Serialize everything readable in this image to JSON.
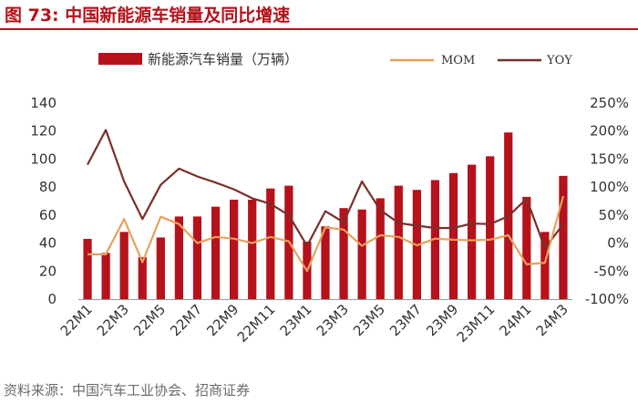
{
  "header": {
    "title": "图 73:  中国新能源车销量及同比增速"
  },
  "footer": {
    "source": "资料来源：中国汽车工业协会、招商证券"
  },
  "colors": {
    "bar": "#b5121b",
    "mom": "#e6a15c",
    "yoy": "#7a2e2a",
    "title": "#b5121b"
  },
  "chart_data": {
    "type": "bar",
    "title": "中国新能源车销量及同比增速",
    "categories": [
      "22M1",
      "22M2",
      "22M3",
      "22M4",
      "22M5",
      "22M6",
      "22M7",
      "22M8",
      "22M9",
      "22M10",
      "22M11",
      "22M12",
      "23M1",
      "23M2",
      "23M3",
      "23M4",
      "23M5",
      "23M6",
      "23M7",
      "23M8",
      "23M9",
      "23M10",
      "23M11",
      "23M12",
      "24M1",
      "24M2",
      "24M3"
    ],
    "tick_labels": [
      "22M1",
      "22M3",
      "22M5",
      "22M7",
      "22M9",
      "22M11",
      "23M1",
      "23M3",
      "23M5",
      "23M7",
      "23M9",
      "23M11",
      "24M1",
      "24M3"
    ],
    "series": [
      {
        "name": "新能源汽车销量（万辆）",
        "type": "bar",
        "axis": "left",
        "values": [
          43,
          33,
          48,
          30,
          44,
          59,
          59,
          66,
          71,
          71,
          79,
          81,
          41,
          52,
          65,
          64,
          72,
          81,
          78,
          85,
          90,
          96,
          102,
          119,
          73,
          48,
          88
        ]
      },
      {
        "name": "MOM",
        "type": "line",
        "axis": "right",
        "values": [
          -20,
          -20,
          43,
          -34,
          47,
          34,
          0,
          11,
          8,
          0,
          11,
          3,
          -50,
          28,
          24,
          -5,
          14,
          11,
          -4,
          8,
          6,
          5,
          6,
          14,
          -38,
          -35,
          84
        ]
      },
      {
        "name": "YOY",
        "type": "line",
        "axis": "right",
        "values": [
          140,
          202,
          110,
          43,
          104,
          133,
          119,
          108,
          96,
          80,
          70,
          50,
          -5,
          57,
          37,
          110,
          59,
          36,
          31,
          27,
          27,
          35,
          34,
          48,
          79,
          -9,
          34
        ]
      }
    ],
    "left_axis": {
      "min": 0,
      "max": 140,
      "ticks": [
        0,
        20,
        40,
        60,
        80,
        100,
        120,
        140
      ]
    },
    "right_axis": {
      "min": -100,
      "max": 250,
      "ticks": [
        "-100%",
        "-50%",
        "0%",
        "50%",
        "100%",
        "150%",
        "200%",
        "250%"
      ]
    },
    "legend": {
      "position": "top"
    }
  }
}
